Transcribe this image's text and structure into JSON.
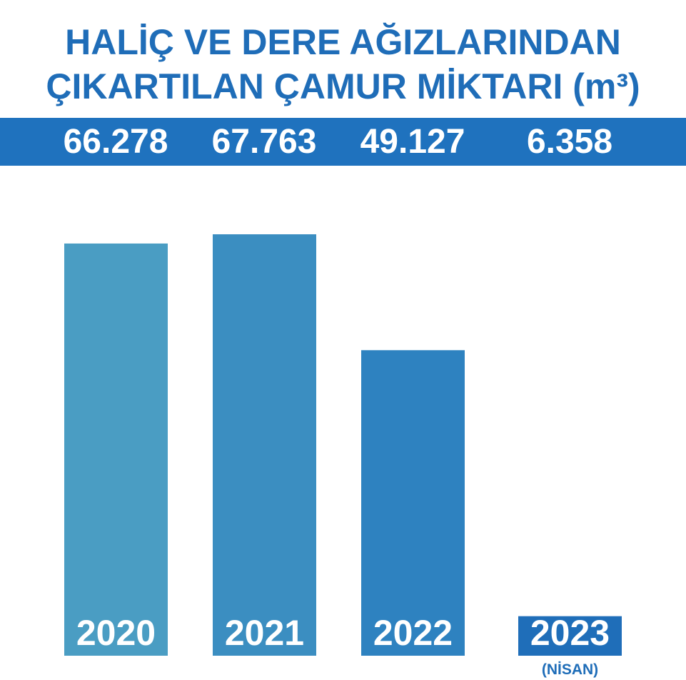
{
  "title_lines": [
    "HALİÇ VE DERE AĞIZLARINDAN",
    "ÇIKARTILAN ÇAMUR MİKTARI (m³)"
  ],
  "value_labels": [
    "66.278",
    "67.763",
    "49.127",
    "6.358"
  ],
  "year_labels": [
    "2020",
    "2021",
    "2022",
    "2023"
  ],
  "note": "(NİSAN)",
  "colors": {
    "title": "#1f6db8",
    "band": "#1f72be",
    "bars": [
      "#4a9dc3",
      "#3b8ec1",
      "#2e82c0",
      "#1f6eb9"
    ]
  },
  "chart_data": {
    "type": "bar",
    "title": "HALİÇ VE DERE AĞIZLARINDAN ÇIKARTILAN ÇAMUR MİKTARI (m³)",
    "categories": [
      "2020",
      "2021",
      "2022",
      "2023"
    ],
    "values": [
      66278,
      67763,
      49127,
      6358
    ],
    "category_notes": [
      "",
      "",
      "",
      "(NİSAN)"
    ],
    "xlabel": "",
    "ylabel": "",
    "ylim": [
      0,
      67763
    ],
    "grid": false,
    "legend": "none"
  }
}
